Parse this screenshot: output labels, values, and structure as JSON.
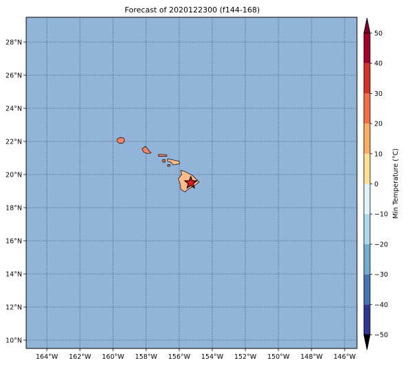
{
  "title": "Forecast of 2020122300 (f144-168)",
  "map": {
    "lon_range": [
      -165.25,
      -145.25
    ],
    "lat_range": [
      9.5,
      29.5
    ],
    "ocean_color": "#91b4d8",
    "grid_style": "dotted",
    "lon_ticks": [
      {
        "value": -164,
        "label": "164°W"
      },
      {
        "value": -162,
        "label": "162°W"
      },
      {
        "value": -160,
        "label": "160°W"
      },
      {
        "value": -158,
        "label": "158°W"
      },
      {
        "value": -156,
        "label": "156°W"
      },
      {
        "value": -154,
        "label": "154°W"
      },
      {
        "value": -152,
        "label": "152°W"
      },
      {
        "value": -150,
        "label": "150°W"
      },
      {
        "value": -148,
        "label": "148°W"
      },
      {
        "value": -146,
        "label": "146°W"
      }
    ],
    "lat_ticks": [
      {
        "value": 10,
        "label": "10°N"
      },
      {
        "value": 12,
        "label": "12°N"
      },
      {
        "value": 14,
        "label": "14°N"
      },
      {
        "value": 16,
        "label": "16°N"
      },
      {
        "value": 18,
        "label": "18°N"
      },
      {
        "value": 20,
        "label": "20°N"
      },
      {
        "value": 22,
        "label": "22°N"
      },
      {
        "value": 24,
        "label": "24°N"
      },
      {
        "value": 26,
        "label": "26°N"
      },
      {
        "value": 28,
        "label": "28°N"
      }
    ],
    "islands": [
      {
        "name": "kauai",
        "fill": "#f4845f",
        "coords": [
          [
            -159.75,
            22.15
          ],
          [
            -159.55,
            22.25
          ],
          [
            -159.35,
            22.2
          ],
          [
            -159.3,
            22.05
          ],
          [
            -159.4,
            21.9
          ],
          [
            -159.6,
            21.88
          ],
          [
            -159.75,
            22.0
          ]
        ]
      },
      {
        "name": "oahu",
        "fill": "#f4845f",
        "coords": [
          [
            -158.25,
            21.55
          ],
          [
            -158.05,
            21.7
          ],
          [
            -157.9,
            21.55
          ],
          [
            -157.7,
            21.3
          ],
          [
            -157.95,
            21.28
          ],
          [
            -158.15,
            21.35
          ]
        ]
      },
      {
        "name": "molokai",
        "fill": "#f4845f",
        "coords": [
          [
            -157.25,
            21.22
          ],
          [
            -156.75,
            21.2
          ],
          [
            -156.75,
            21.1
          ],
          [
            -157.25,
            21.1
          ]
        ]
      },
      {
        "name": "maui",
        "fill": "#fdbb8a",
        "coords": [
          [
            -156.7,
            20.95
          ],
          [
            -156.45,
            20.9
          ],
          [
            -156.0,
            20.8
          ],
          [
            -155.98,
            20.65
          ],
          [
            -156.35,
            20.58
          ],
          [
            -156.5,
            20.75
          ],
          [
            -156.7,
            20.8
          ]
        ]
      },
      {
        "name": "lanai",
        "fill": "#f4845f",
        "coords": [
          [
            -157.0,
            20.9
          ],
          [
            -156.85,
            20.9
          ],
          [
            -156.85,
            20.75
          ],
          [
            -157.0,
            20.75
          ]
        ]
      },
      {
        "name": "kahoolawe",
        "fill": "#f4845f",
        "coords": [
          [
            -156.7,
            20.6
          ],
          [
            -156.55,
            20.6
          ],
          [
            -156.55,
            20.5
          ],
          [
            -156.7,
            20.5
          ]
        ]
      },
      {
        "name": "hawaii",
        "fill": "#fdbb8a",
        "coords": [
          [
            -155.9,
            20.25
          ],
          [
            -155.7,
            20.2
          ],
          [
            -155.2,
            19.95
          ],
          [
            -155.0,
            19.75
          ],
          [
            -154.8,
            19.55
          ],
          [
            -155.05,
            19.35
          ],
          [
            -155.45,
            19.12
          ],
          [
            -155.65,
            18.95
          ],
          [
            -155.9,
            19.1
          ],
          [
            -155.95,
            19.45
          ],
          [
            -156.05,
            19.75
          ],
          [
            -155.85,
            20.0
          ]
        ]
      }
    ],
    "marker": {
      "symbol": "star",
      "lon": -155.3,
      "lat": 19.5,
      "color": "#e31a1c"
    }
  },
  "colorbar": {
    "label": "Min Temperature (°C)",
    "range": [
      -50,
      50
    ],
    "step": 10,
    "extend": "both",
    "tick_labels": [
      "−50",
      "−40",
      "−30",
      "−20",
      "−10",
      "0",
      "10",
      "20",
      "30",
      "40",
      "50"
    ],
    "tick_values": [
      -50,
      -40,
      -30,
      -20,
      -10,
      0,
      10,
      20,
      30,
      40,
      50
    ],
    "colors": [
      "#313695",
      "#4575b4",
      "#74add1",
      "#abd9e9",
      "#e0f3f8",
      "#ffffbf",
      "#fee090",
      "#fdae61",
      "#f46d43",
      "#d73027",
      "#a50026"
    ],
    "under_color": "#000000",
    "over_color": "#800026"
  }
}
